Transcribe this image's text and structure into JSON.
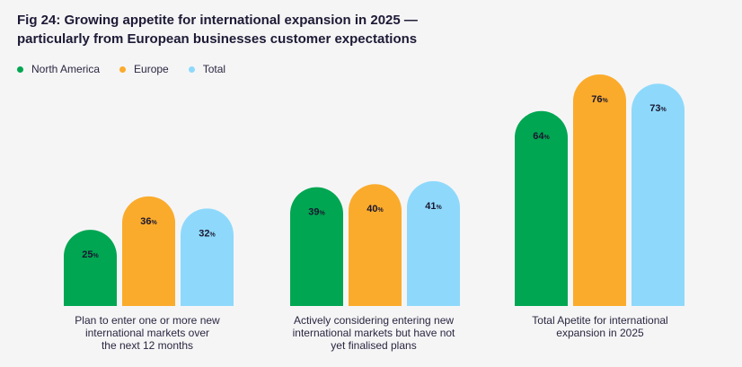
{
  "chart_data": {
    "type": "bar",
    "title_lines": [
      "Fig 24: Growing appetite for international expansion in 2025 —",
      "particularly from European businesses customer expectations"
    ],
    "categories": [
      [
        "Plan to enter one or more new",
        "international markets over",
        "the next 12 months"
      ],
      [
        "Actively considering entering new",
        "international markets but have not",
        "yet finalised plans"
      ],
      [
        "Total Apetite for international",
        "expansion in 2025"
      ]
    ],
    "series": [
      {
        "name": "North America",
        "color": "#00a651",
        "values": [
          25,
          39,
          64
        ]
      },
      {
        "name": "Europe",
        "color": "#fbab2b",
        "values": [
          36,
          40,
          76
        ]
      },
      {
        "name": "Total",
        "color": "#8ed9fb",
        "values": [
          32,
          41,
          73
        ]
      }
    ],
    "value_suffix": "%",
    "ylim": [
      0,
      100
    ],
    "legend": "top-left",
    "grid": false,
    "xlabel": "",
    "ylabel": ""
  }
}
